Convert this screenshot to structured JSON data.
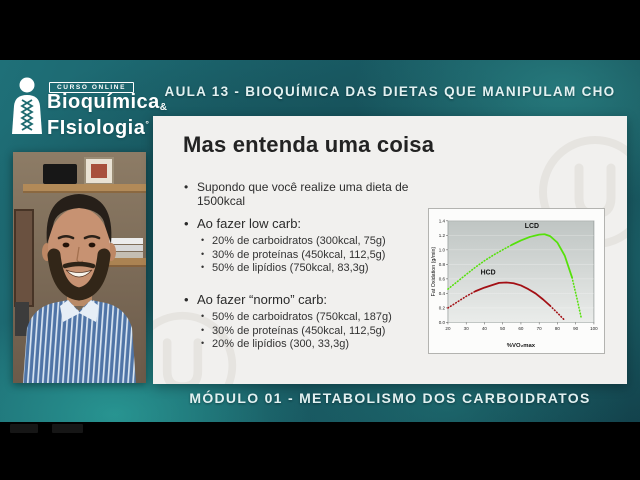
{
  "stage": {
    "header": "AULA 13 - BIOQUÍMICA DAS DIETAS QUE MANIPULAM CHO",
    "footer": "MÓDULO 01 - METABOLISMO DOS CARBOIDRATOS"
  },
  "logo": {
    "badge": "CURSO ONLINE",
    "line1": "Bioquímica",
    "amp": "&",
    "line2": "FIsiologia",
    "mark": "°"
  },
  "slide": {
    "title": "Mas entenda uma coisa",
    "intro_bullet": "Supondo que você realize uma dieta de 1500kcal",
    "sections": [
      {
        "heading": "Ao fazer low carb:",
        "items": [
          "20% de carboidratos (300kcal, 75g)",
          "30% de proteínas (450kcal, 112,5g)",
          "50% de lipídios (750kcal, 83,3g)"
        ]
      },
      {
        "heading": "Ao fazer “normo” carb:",
        "items": [
          "50% de carboidratos (750kcal, 187g)",
          "30% de proteínas (450kcal, 112,5g)",
          "20% de lipídios (300, 33,3g)"
        ]
      }
    ]
  },
  "chart_data": {
    "type": "line",
    "title": "",
    "xlabel": "%VO₂max",
    "ylabel": "Fat Oxidation (g/min)",
    "xlim": [
      20,
      100
    ],
    "ylim": [
      0,
      1.4
    ],
    "xticks": [
      20,
      30,
      40,
      50,
      60,
      70,
      80,
      90,
      100
    ],
    "yticks": [
      "0.0",
      "0.2",
      "0.4",
      "0.6",
      "0.8",
      "1.0",
      "1.2",
      "1.4"
    ],
    "grid": "horizontal",
    "legend": "inline-labels",
    "series": [
      {
        "name": "LCD",
        "color": "#55e10a",
        "label_xy": [
          66,
          1.3
        ],
        "dash_split": [
          7,
          15
        ],
        "points": [
          [
            20,
            0.46
          ],
          [
            25,
            0.56
          ],
          [
            30,
            0.66
          ],
          [
            35,
            0.76
          ],
          [
            40,
            0.85
          ],
          [
            45,
            0.93
          ],
          [
            50,
            1.0
          ],
          [
            55,
            1.07
          ],
          [
            60,
            1.13
          ],
          [
            65,
            1.18
          ],
          [
            70,
            1.21
          ],
          [
            73,
            1.215
          ],
          [
            76,
            1.19
          ],
          [
            80,
            1.1
          ],
          [
            84,
            0.92
          ],
          [
            88,
            0.62
          ],
          [
            91,
            0.3
          ],
          [
            93,
            0.07
          ]
        ]
      },
      {
        "name": "HCD",
        "color": "#a30f14",
        "label_xy": [
          42,
          0.66
        ],
        "dash_split": [
          3,
          13
        ],
        "points": [
          [
            20,
            0.2
          ],
          [
            25,
            0.28
          ],
          [
            30,
            0.36
          ],
          [
            35,
            0.43
          ],
          [
            40,
            0.48
          ],
          [
            45,
            0.52
          ],
          [
            48,
            0.545
          ],
          [
            52,
            0.55
          ],
          [
            56,
            0.54
          ],
          [
            60,
            0.51
          ],
          [
            64,
            0.46
          ],
          [
            68,
            0.4
          ],
          [
            72,
            0.32
          ],
          [
            76,
            0.23
          ],
          [
            80,
            0.13
          ],
          [
            84,
            0.03
          ]
        ]
      }
    ]
  },
  "colors": {
    "teal_background": "#195b64",
    "card_background": "#f1f0ee",
    "header_text": "#e2f1f1",
    "lcd_green": "#55e10a",
    "hcd_red": "#a30f14"
  }
}
